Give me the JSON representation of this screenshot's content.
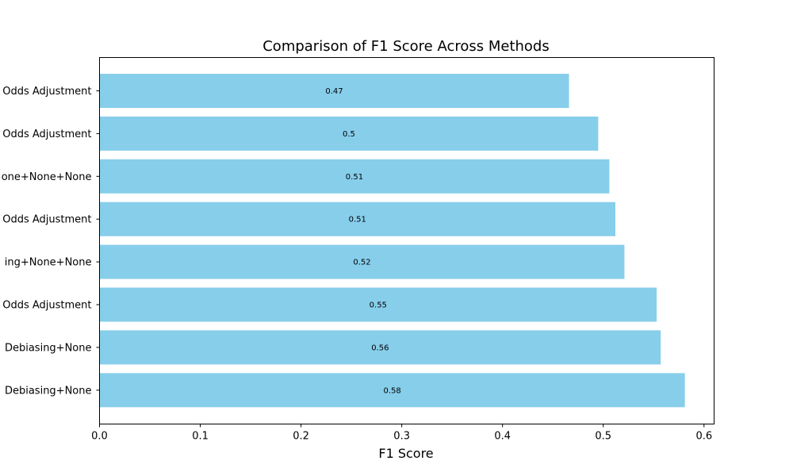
{
  "chart_data": {
    "type": "bar",
    "orientation": "horizontal",
    "title": "Comparison of F1 Score Across Methods",
    "xlabel": "F1 Score",
    "ylabel": "",
    "xlim": [
      0,
      0.61
    ],
    "xticks": [
      0.0,
      0.1,
      0.2,
      0.3,
      0.4,
      0.5,
      0.6
    ],
    "xtick_labels": [
      "0.0",
      "0.1",
      "0.2",
      "0.3",
      "0.4",
      "0.5",
      "0.6"
    ],
    "grid": false,
    "bar_color": "#87ceeb",
    "categories": [
      "Odds Adjustment",
      "Odds Adjustment",
      "one+None+None",
      "Odds Adjustment",
      "ing+None+None",
      "Odds Adjustment",
      "Debiasing+None",
      "Debiasing+None"
    ],
    "values": [
      0.466,
      0.495,
      0.506,
      0.512,
      0.521,
      0.553,
      0.557,
      0.581
    ],
    "data_labels": [
      "0.47",
      "0.5",
      "0.51",
      "0.51",
      "0.52",
      "0.55",
      "0.56",
      "0.58"
    ]
  }
}
